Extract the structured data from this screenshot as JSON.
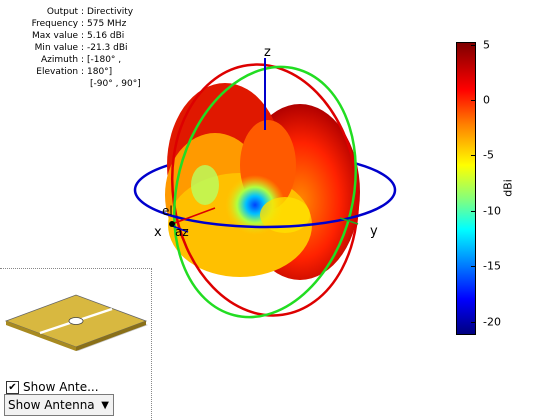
{
  "info": [
    {
      "key": "Output",
      "value": "Directivity"
    },
    {
      "key": "Frequency",
      "value": "575 MHz"
    },
    {
      "key": "Max value",
      "value": "5.16 dBi"
    },
    {
      "key": "Min value",
      "value": "-21.3 dBi"
    },
    {
      "key": "Azimuth",
      "value": "[-180° ,"
    },
    {
      "key": "Elevation",
      "value": "180°]"
    }
  ],
  "info_extra": "[-90° , 90°]",
  "axes": {
    "x": "x",
    "y": "y",
    "z": "z",
    "el": "el",
    "az": "az"
  },
  "colorbar": {
    "label": "dBi",
    "ticks": [
      "5",
      "0",
      "-5",
      "-10",
      "-15",
      "-20"
    ],
    "max": 5.16,
    "min": -21.3
  },
  "controls": {
    "show_antenna_checkbox_label": "Show Ante...",
    "show_antenna_checked": true,
    "dropdown_value": "Show Antenna"
  },
  "colors": {
    "azimuth_circle": "#0000cc",
    "elevation_circle_red": "#dd0000",
    "elevation_circle_green": "#22dd22"
  }
}
